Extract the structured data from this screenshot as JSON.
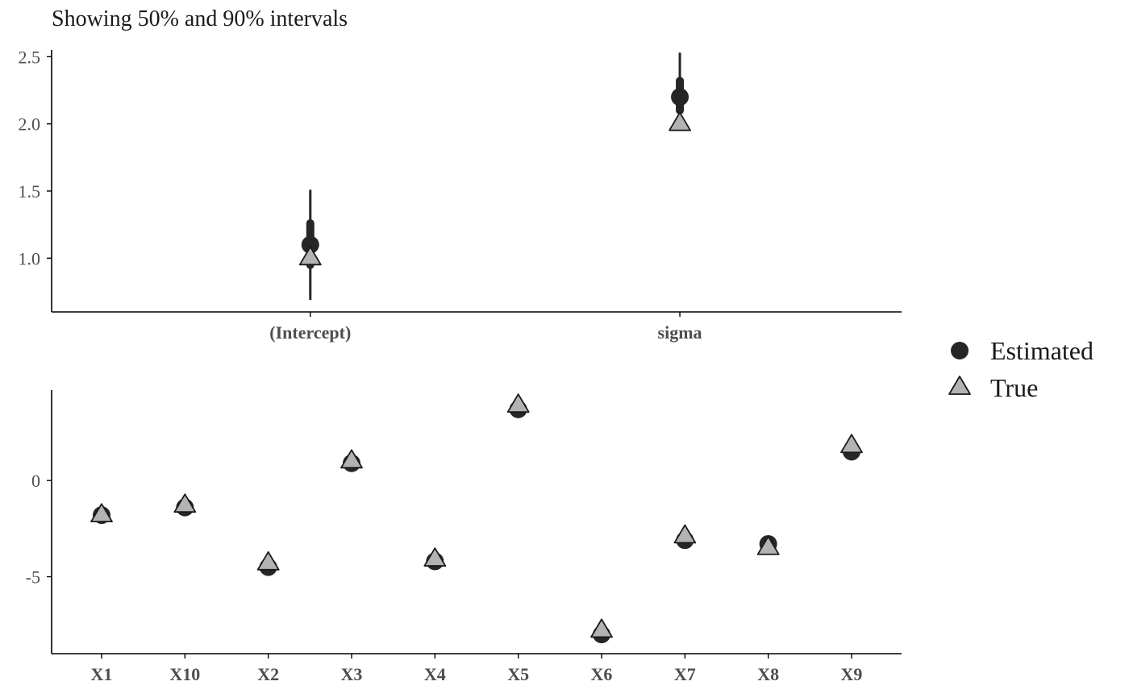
{
  "subtitle": "Showing 50% and 90% intervals",
  "colors": {
    "estimated": "#262626",
    "true_fill": "#b3b3b3",
    "true_stroke": "#1a1a1a",
    "axis": "#000000",
    "tick_text": "#4d4d4d"
  },
  "legend": {
    "placement": "right",
    "items": [
      {
        "label": "Estimated",
        "shape": "circle"
      },
      {
        "label": "True",
        "shape": "triangle"
      }
    ]
  },
  "chart_data": [
    {
      "type": "pointrange",
      "categories": [
        "(Intercept)",
        "sigma"
      ],
      "ylim": [
        0.6,
        2.55
      ],
      "yticks": [
        1.0,
        1.5,
        2.0,
        2.5
      ],
      "ytick_labels": [
        "1.0",
        "1.5",
        "2.0",
        "2.5"
      ],
      "grid": false,
      "series": [
        {
          "name": "Estimated",
          "values": [
            1.1,
            2.2
          ],
          "interval_50": [
            [
              0.95,
              1.26
            ],
            [
              2.1,
              2.32
            ]
          ],
          "interval_90": [
            [
              0.69,
              1.51
            ],
            [
              1.97,
              2.53
            ]
          ]
        },
        {
          "name": "True",
          "values": [
            1.0,
            2.0
          ]
        }
      ]
    },
    {
      "type": "pointrange",
      "categories": [
        "X1",
        "X10",
        "X2",
        "X3",
        "X4",
        "X5",
        "X6",
        "X7",
        "X8",
        "X9"
      ],
      "ylim": [
        -9.0,
        4.7
      ],
      "yticks": [
        -5,
        0
      ],
      "ytick_labels": [
        "-5",
        "0"
      ],
      "grid": false,
      "series": [
        {
          "name": "Estimated",
          "values": [
            -1.8,
            -1.4,
            -4.5,
            0.9,
            -4.2,
            3.7,
            -8.0,
            -3.1,
            -3.3,
            1.5
          ]
        },
        {
          "name": "True",
          "values": [
            -1.8,
            -1.3,
            -4.3,
            1.0,
            -4.1,
            3.9,
            -7.8,
            -2.9,
            -3.5,
            1.8
          ]
        }
      ]
    }
  ]
}
